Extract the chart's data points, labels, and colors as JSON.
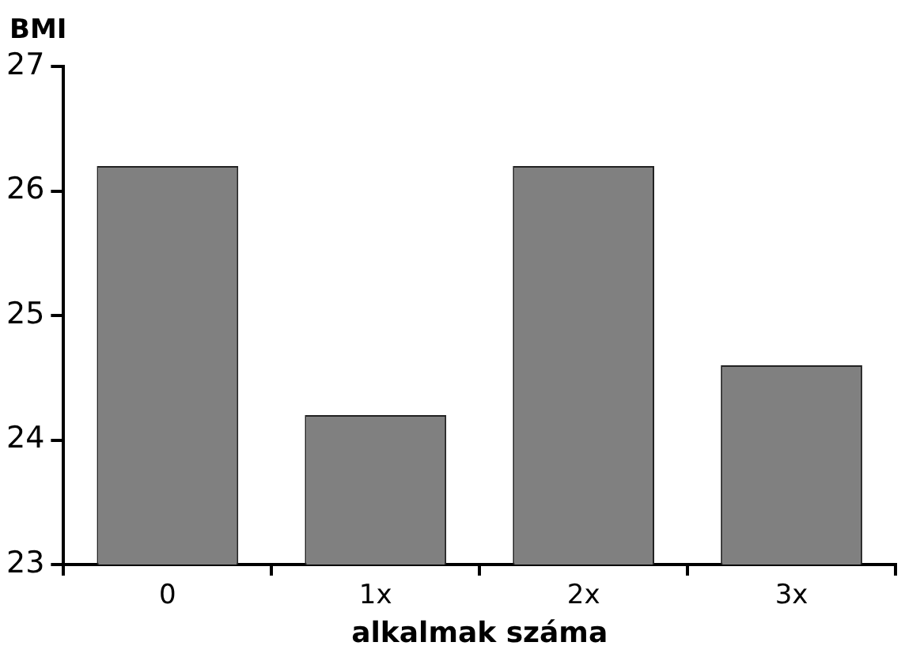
{
  "chart_data": {
    "type": "bar",
    "ylabel": "BMI",
    "xlabel": "alkalmak száma",
    "categories": [
      "0",
      "1x",
      "2x",
      "3x"
    ],
    "values": [
      26.2,
      24.2,
      26.2,
      24.6
    ],
    "color": "#808080",
    "ylim": [
      23,
      27
    ],
    "yticks": [
      23,
      24,
      25,
      26,
      27
    ],
    "grid": false,
    "legend": false
  }
}
